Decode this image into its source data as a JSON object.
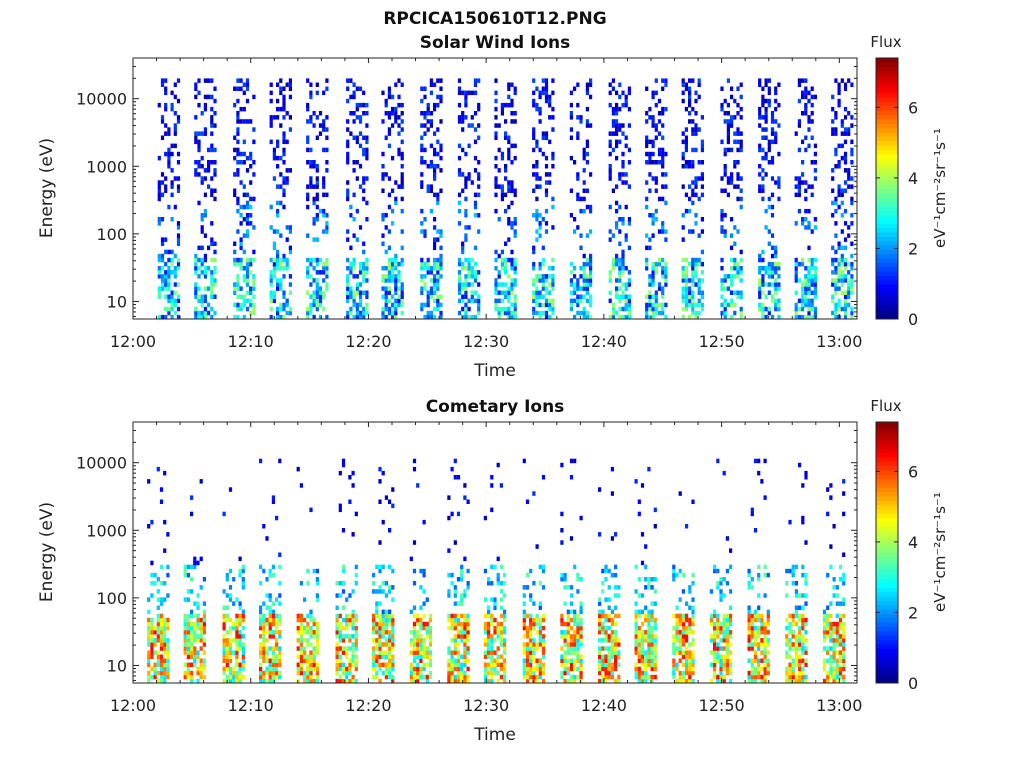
{
  "figure_title": "RPCICA150610T12.PNG",
  "colorbar": {
    "title": "Flux",
    "label": "eV⁻¹cm⁻²sr⁻¹s⁻¹",
    "ticks": [
      "0",
      "2",
      "4",
      "6"
    ],
    "range": [
      0,
      7.4
    ]
  },
  "chart_data": [
    {
      "type": "heatmap",
      "title": "Solar Wind Ions",
      "xlabel": "Time",
      "ylabel": "Energy (eV)",
      "x_ticks": [
        "12:00",
        "12:10",
        "12:20",
        "12:30",
        "12:40",
        "12:50",
        "13:00"
      ],
      "y_ticks": [
        "10",
        "100",
        "1000",
        "10000"
      ],
      "y_scale": "log",
      "ylim": [
        5.5,
        40000
      ],
      "xlim_minutes": [
        0,
        61.5
      ],
      "scan_start_minutes": [
        2.1,
        5.2,
        8.5,
        11.6,
        14.7,
        18.1,
        21.1,
        24.4,
        27.6,
        30.7,
        33.9,
        37.1,
        40.4,
        43.5,
        46.6,
        49.9,
        53.1,
        56.2,
        59.3
      ],
      "description": "Sparse low-flux (0-3) counts from 10 eV to 20000 eV during each energy scan, higher flux (up to ~4) below 40 eV"
    },
    {
      "type": "heatmap",
      "title": "Cometary Ions",
      "xlabel": "Time",
      "ylabel": "Energy (eV)",
      "x_ticks": [
        "12:00",
        "12:10",
        "12:20",
        "12:30",
        "12:40",
        "12:50",
        "13:00"
      ],
      "y_ticks": [
        "10",
        "100",
        "1000",
        "10000"
      ],
      "y_scale": "log",
      "ylim": [
        5.5,
        40000
      ],
      "xlim_minutes": [
        0,
        61.5
      ],
      "scan_start_minutes": [
        1.2,
        4.3,
        7.6,
        10.7,
        13.9,
        17.2,
        20.3,
        23.5,
        26.7,
        29.8,
        33.1,
        36.3,
        39.5,
        42.6,
        45.8,
        49.0,
        52.2,
        55.4,
        58.6
      ],
      "description": "Strong flux (4-6.5) between 6 and 60 eV in every scan, occasional sparse counts up to 10000 eV"
    }
  ]
}
